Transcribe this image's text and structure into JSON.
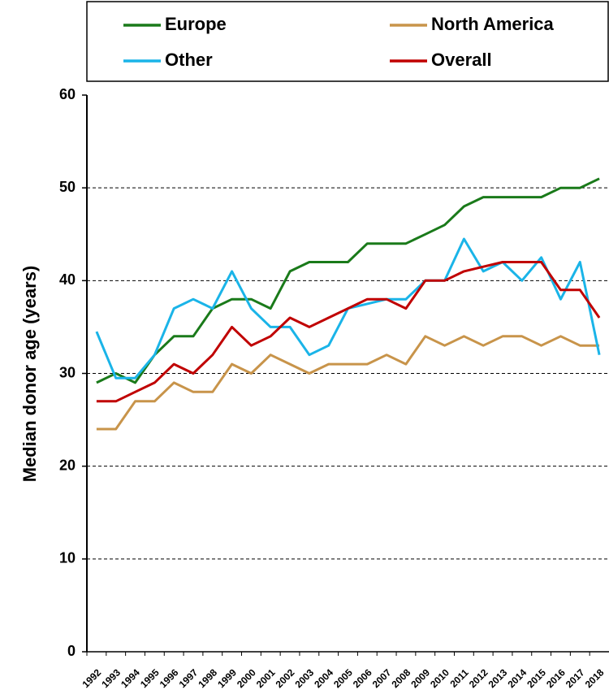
{
  "chart_data": {
    "type": "line",
    "y_label": "Median donor age (years)",
    "categories": [
      "1992",
      "1993",
      "1994",
      "1995",
      "1996",
      "1997",
      "1998",
      "1999",
      "2000",
      "2001",
      "2002",
      "2003",
      "2004",
      "2005",
      "2006",
      "2007",
      "2008",
      "2009",
      "2010",
      "2011",
      "2012",
      "2013",
      "2014",
      "2015",
      "2016",
      "2017",
      "2018"
    ],
    "series": [
      {
        "name": "Europe",
        "color": "#1a7a1a",
        "values": [
          29,
          30,
          29,
          32,
          34,
          34,
          37,
          38,
          38,
          37,
          41,
          42,
          42,
          42,
          44,
          44,
          44,
          45,
          46,
          48,
          49,
          49,
          49,
          49,
          50,
          50,
          51
        ]
      },
      {
        "name": "North America",
        "color": "#c8944a",
        "values": [
          24,
          24,
          27,
          27,
          29,
          28,
          28,
          31,
          30,
          32,
          31,
          30,
          31,
          31,
          31,
          32,
          31,
          34,
          33,
          34,
          33,
          34,
          34,
          33,
          34,
          33,
          33
        ]
      },
      {
        "name": "Other",
        "color": "#1ab4e8",
        "values": [
          34.5,
          29.5,
          29.5,
          32,
          37,
          38,
          37,
          41,
          37,
          35,
          35,
          32,
          33,
          37,
          37.5,
          38,
          38,
          40,
          40,
          44.5,
          41,
          42,
          40,
          42.5,
          38,
          42,
          32
        ]
      },
      {
        "name": "Overall",
        "color": "#c00000",
        "values": [
          27,
          27,
          28,
          29,
          31,
          30,
          32,
          35,
          33,
          34,
          36,
          35,
          36,
          37,
          38,
          38,
          37,
          40,
          40,
          41,
          41.5,
          42,
          42,
          42,
          39,
          39,
          36
        ]
      }
    ],
    "ylim": [
      0,
      60
    ],
    "yticks": [
      0,
      10,
      20,
      30,
      40,
      50,
      60
    ],
    "grid": true
  }
}
